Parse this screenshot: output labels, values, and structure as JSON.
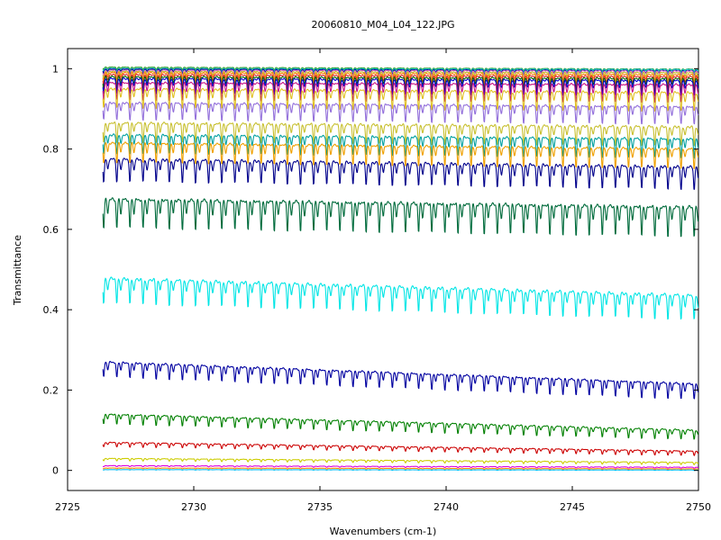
{
  "chart_data": {
    "type": "line",
    "title": "20060810_M04_L04_122.JPG",
    "xlabel": "Wavenumbers (cm-1)",
    "ylabel": "Transmittance",
    "xlim": [
      2725,
      2750
    ],
    "ylim": [
      -0.05,
      1.05
    ],
    "data_x_range": [
      2726.4,
      2750
    ],
    "x_ticks": [
      2725,
      2730,
      2735,
      2740,
      2745,
      2750
    ],
    "x_tick_labels": [
      "2725",
      "2730",
      "2735",
      "2740",
      "2745",
      "2750"
    ],
    "y_ticks": [
      0,
      0.2,
      0.4,
      0.6,
      0.8,
      1
    ],
    "y_tick_labels": [
      "0",
      "0.2",
      "0.4",
      "0.6",
      "0.8",
      "1"
    ],
    "grid": false,
    "legend": "none",
    "absorption_line_spacing_cm1": 0.52,
    "series": [
      {
        "color": "#1f77b4",
        "start": 0.999,
        "end": 0.998,
        "depth": 0.004
      },
      {
        "color": "#2ca02c",
        "start": 1.004,
        "end": 0.999,
        "depth": 0.006
      },
      {
        "color": "#17becf",
        "start": 1.001,
        "end": 0.998,
        "depth": 0.008
      },
      {
        "color": "#00008b",
        "start": 0.999,
        "end": 0.995,
        "depth": 0.012
      },
      {
        "color": "#e377c2",
        "start": 0.996,
        "end": 0.994,
        "depth": 0.015
      },
      {
        "color": "#bcbd22",
        "start": 0.993,
        "end": 0.99,
        "depth": 0.02
      },
      {
        "color": "#ff7f0e",
        "start": 0.99,
        "end": 0.985,
        "depth": 0.025
      },
      {
        "color": "#d62728",
        "start": 0.985,
        "end": 0.98,
        "depth": 0.03
      },
      {
        "color": "#006400",
        "start": 0.98,
        "end": 0.975,
        "depth": 0.035
      },
      {
        "color": "#0000cd",
        "start": 0.975,
        "end": 0.97,
        "depth": 0.04
      },
      {
        "color": "#c71585",
        "start": 0.965,
        "end": 0.96,
        "depth": 0.045
      },
      {
        "color": "#e0c020",
        "start": 0.95,
        "end": 0.94,
        "depth": 0.05
      },
      {
        "color": "#9370db",
        "start": 0.915,
        "end": 0.905,
        "depth": 0.045
      },
      {
        "color": "#c8c030",
        "start": 0.865,
        "end": 0.855,
        "depth": 0.05
      },
      {
        "color": "#00a0a0",
        "start": 0.835,
        "end": 0.825,
        "depth": 0.05
      },
      {
        "color": "#f0a000",
        "start": 0.815,
        "end": 0.8,
        "depth": 0.05
      },
      {
        "color": "#00008b",
        "start": 0.775,
        "end": 0.755,
        "depth": 0.06
      },
      {
        "color": "#006b3c",
        "start": 0.675,
        "end": 0.655,
        "depth": 0.075
      },
      {
        "color": "#00e5e5",
        "start": 0.478,
        "end": 0.435,
        "depth": 0.065
      },
      {
        "color": "#0000a0",
        "start": 0.27,
        "end": 0.215,
        "depth": 0.04
      },
      {
        "color": "#008000",
        "start": 0.14,
        "end": 0.1,
        "depth": 0.025
      },
      {
        "color": "#cc0000",
        "start": 0.07,
        "end": 0.048,
        "depth": 0.012
      },
      {
        "color": "#cccc00",
        "start": 0.03,
        "end": 0.02,
        "depth": 0.006
      },
      {
        "color": "#dd00dd",
        "start": 0.012,
        "end": 0.008,
        "depth": 0.003
      },
      {
        "color": "#ff8c00",
        "start": 0.006,
        "end": 0.004,
        "depth": 0.002
      },
      {
        "color": "#00bfff",
        "start": 0.002,
        "end": 0.001,
        "depth": 0.001
      }
    ]
  }
}
